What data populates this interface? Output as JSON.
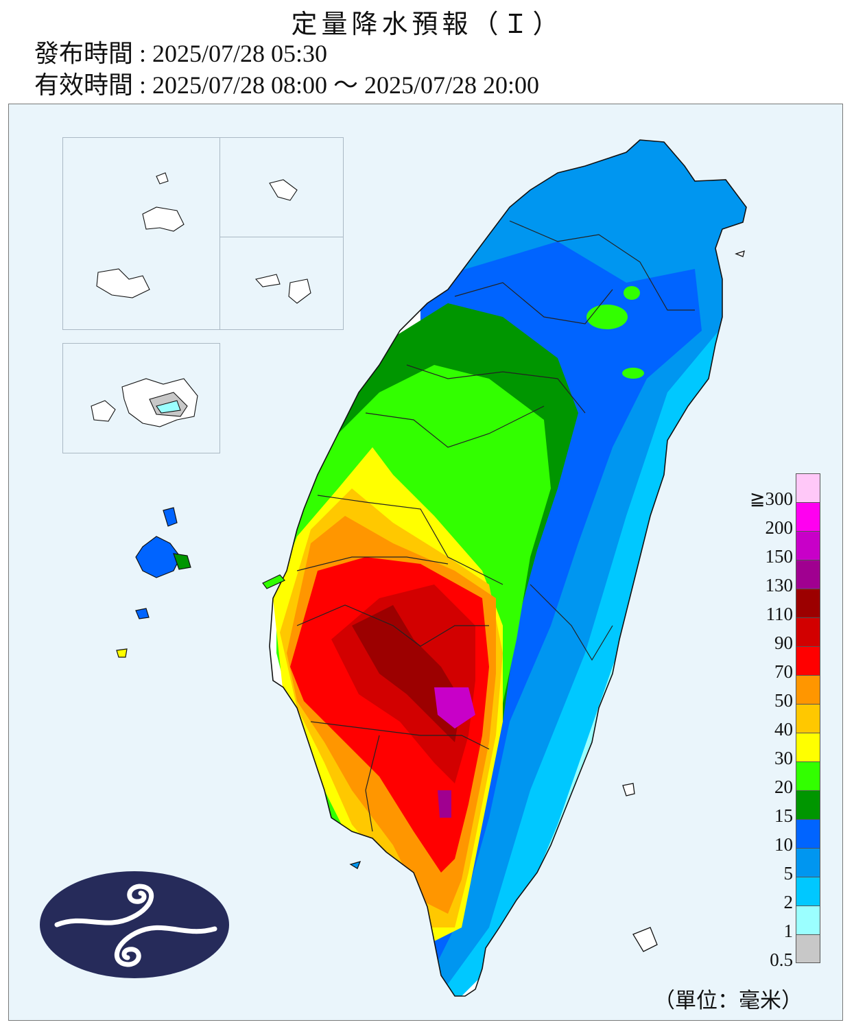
{
  "title": "定量降水預報（Ｉ）",
  "issue_time": "發布時間 : 2025/07/28 05:30",
  "valid_time": "有效時間 : 2025/07/28 08:00 ～ 2025/07/28 20:00",
  "legend": {
    "unit": "（單位：毫米）",
    "levels": [
      {
        "label": "≧300",
        "color": "#ffc8f8"
      },
      {
        "label": "200",
        "color": "#ff00f0"
      },
      {
        "label": "150",
        "color": "#c800c8"
      },
      {
        "label": "130",
        "color": "#a00090"
      },
      {
        "label": "110",
        "color": "#9c0000"
      },
      {
        "label": "90",
        "color": "#d20000"
      },
      {
        "label": "70",
        "color": "#ff0000"
      },
      {
        "label": "50",
        "color": "#ff9600"
      },
      {
        "label": "40",
        "color": "#ffc800"
      },
      {
        "label": "30",
        "color": "#ffff00"
      },
      {
        "label": "20",
        "color": "#32ff00"
      },
      {
        "label": "15",
        "color": "#009600"
      },
      {
        "label": "10",
        "color": "#0064ff"
      },
      {
        "label": "5",
        "color": "#0096f0"
      },
      {
        "label": "2",
        "color": "#00c8ff"
      },
      {
        "label": "1",
        "color": "#9bffff"
      },
      {
        "label": "0.5",
        "color": "#c8c8c8"
      }
    ]
  },
  "logo": {
    "name": "central-weather-administration-logo",
    "color": "#262b5a"
  }
}
